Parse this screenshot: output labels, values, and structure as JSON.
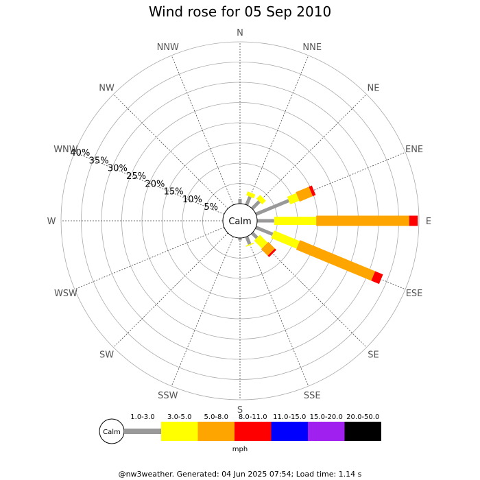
{
  "chart_data": {
    "type": "wind_rose",
    "title": "Wind rose for 05 Sep 2010",
    "directions": [
      "N",
      "NNE",
      "NE",
      "ENE",
      "E",
      "ESE",
      "SE",
      "SSE",
      "S",
      "SSW",
      "SW",
      "WSW",
      "W",
      "WNW",
      "NW",
      "NNW"
    ],
    "ring_labels": [
      "5%",
      "10%",
      "15%",
      "20%",
      "25%",
      "30%",
      "35%",
      "40%"
    ],
    "rlim_percent": [
      0,
      40
    ],
    "calm_label": "Calm",
    "speed_bins": [
      {
        "label": "1.0-3.0",
        "color": "#999999"
      },
      {
        "label": "3.0-5.0",
        "color": "#ffff00"
      },
      {
        "label": "5.0-8.0",
        "color": "#ffa500"
      },
      {
        "label": "8.0-11.0",
        "color": "#ff0000"
      },
      {
        "label": "11.0-15.0",
        "color": "#0000ff"
      },
      {
        "label": "15.0-20.0",
        "color": "#a020f0"
      },
      {
        "label": "20.0-50.0",
        "color": "#000000"
      }
    ],
    "legend_unit": "mph",
    "series": [
      {
        "direction": "N",
        "cumulative_percent": [
          1.2,
          1.2,
          1.2,
          1.2,
          1.2,
          1.2,
          1.2
        ]
      },
      {
        "direction": "NNE",
        "cumulative_percent": [
          2.2,
          3.2,
          3.2,
          3.2,
          3.2,
          3.2,
          3.2
        ]
      },
      {
        "direction": "NE",
        "cumulative_percent": [
          2.5,
          3.8,
          3.8,
          3.8,
          3.8,
          3.8,
          3.8
        ]
      },
      {
        "direction": "ENE",
        "cumulative_percent": [
          8.8,
          11.2,
          14.7,
          15.5,
          15.5,
          15.5,
          15.5
        ]
      },
      {
        "direction": "E",
        "cumulative_percent": [
          4.2,
          14.6,
          37.6,
          39.7,
          39.7,
          39.7,
          39.7
        ]
      },
      {
        "direction": "ESE",
        "cumulative_percent": [
          4.5,
          11.3,
          31.4,
          33.5,
          33.5,
          33.5,
          33.5
        ]
      },
      {
        "direction": "SE",
        "cumulative_percent": [
          1.7,
          4.4,
          6.7,
          7.2,
          7.2,
          7.2,
          7.2
        ]
      },
      {
        "direction": "SSE",
        "cumulative_percent": [
          2.0,
          2.3,
          2.3,
          2.3,
          2.3,
          2.3,
          2.3
        ]
      },
      {
        "direction": "S",
        "cumulative_percent": [
          0.6,
          0.6,
          0.6,
          0.6,
          0.6,
          0.6,
          0.6
        ]
      }
    ]
  },
  "footer": "@nw3weather. Generated: 04 Jun 2025 07:54; Load time: 1.14 s"
}
